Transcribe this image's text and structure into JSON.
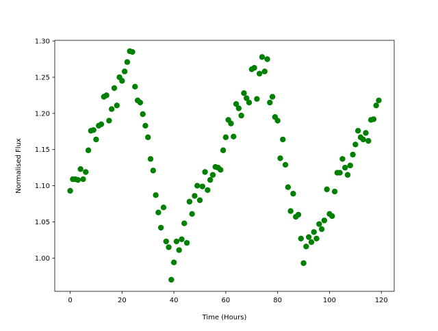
{
  "chart_data": {
    "type": "scatter",
    "x_label": "Time (Hours)",
    "y_label": "Normalised Flux",
    "color": "#008000",
    "x": [
      0,
      1,
      2,
      3,
      4,
      5,
      6,
      7,
      8,
      9,
      10,
      11,
      12,
      13,
      14,
      15,
      16,
      17,
      18,
      19,
      20,
      21,
      22,
      23,
      24,
      25,
      26,
      27,
      28,
      29,
      30,
      31,
      32,
      33,
      34,
      35,
      36,
      37,
      38,
      39,
      40,
      41,
      42,
      43,
      44,
      45,
      46,
      47,
      48,
      49,
      50,
      51,
      52,
      53,
      54,
      55,
      56,
      57,
      58,
      59,
      60,
      61,
      62,
      63,
      64,
      65,
      66,
      67,
      68,
      69,
      70,
      71,
      72,
      73,
      74,
      75,
      76,
      77,
      78,
      79,
      80,
      81,
      82,
      83,
      84,
      85,
      86,
      87,
      88,
      89,
      90,
      91,
      92,
      93,
      94,
      95,
      96,
      97,
      98,
      99,
      100,
      101,
      102,
      103,
      104,
      105,
      106,
      107,
      108,
      109,
      110,
      111,
      112,
      113,
      114,
      115,
      116,
      117,
      118,
      119
    ],
    "values": [
      1.093,
      1.109,
      1.109,
      1.108,
      1.123,
      1.109,
      1.119,
      1.149,
      1.176,
      1.177,
      1.164,
      1.183,
      1.185,
      1.223,
      1.225,
      1.19,
      1.206,
      1.235,
      1.211,
      1.25,
      1.245,
      1.258,
      1.271,
      1.286,
      1.285,
      1.237,
      1.218,
      1.215,
      1.199,
      1.183,
      1.167,
      1.137,
      1.121,
      1.087,
      1.063,
      1.042,
      1.07,
      1.023,
      1.015,
      0.97,
      0.994,
      1.023,
      1.011,
      1.026,
      1.048,
      1.021,
      1.078,
      1.061,
      1.086,
      1.1,
      1.08,
      1.099,
      1.119,
      1.094,
      1.108,
      1.115,
      1.126,
      1.125,
      1.122,
      1.149,
      1.167,
      1.191,
      1.186,
      1.168,
      1.213,
      1.207,
      1.197,
      1.228,
      1.221,
      1.215,
      1.261,
      1.263,
      1.22,
      1.255,
      1.278,
      1.258,
      1.275,
      1.215,
      1.223,
      1.195,
      1.19,
      1.138,
      1.164,
      1.129,
      1.098,
      1.065,
      1.089,
      1.057,
      1.06,
      1.027,
      0.993,
      1.016,
      1.029,
      1.022,
      1.036,
      1.027,
      1.047,
      1.04,
      1.052,
      1.095,
      1.061,
      1.058,
      1.092,
      1.118,
      1.118,
      1.137,
      1.125,
      1.115,
      1.128,
      1.143,
      1.157,
      1.176,
      1.167,
      1.164,
      1.173,
      1.162,
      1.191,
      1.192,
      1.211,
      1.218
    ],
    "xlim": [
      -5.95,
      124.95
    ],
    "xticks": [
      0,
      20,
      40,
      60,
      80,
      100,
      120
    ],
    "ylim": [
      0.954,
      1.301
    ],
    "yticks": [
      {
        "value": 1.0,
        "label": "1.00"
      },
      {
        "value": 1.05,
        "label": "1.05"
      },
      {
        "value": 1.1,
        "label": "1.10"
      },
      {
        "value": 1.15,
        "label": "1.15"
      },
      {
        "value": 1.2,
        "label": "1.20"
      },
      {
        "value": 1.25,
        "label": "1.25"
      },
      {
        "value": 1.3,
        "label": "1.30"
      }
    ]
  }
}
